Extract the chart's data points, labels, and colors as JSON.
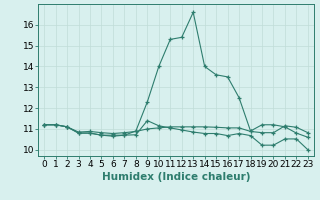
{
  "xlabel": "Humidex (Indice chaleur)",
  "xlim": [
    -0.5,
    23.5
  ],
  "ylim": [
    9.7,
    17.0
  ],
  "yticks": [
    10,
    11,
    12,
    13,
    14,
    15,
    16
  ],
  "xticks": [
    0,
    1,
    2,
    3,
    4,
    5,
    6,
    7,
    8,
    9,
    10,
    11,
    12,
    13,
    14,
    15,
    16,
    17,
    18,
    19,
    20,
    21,
    22,
    23
  ],
  "background_color": "#d8f0ee",
  "line_color": "#2e7d6e",
  "grid_color": "#c0ddd8",
  "series1_x": [
    0,
    1,
    2,
    3,
    4,
    5,
    6,
    7,
    8,
    9,
    10,
    11,
    12,
    13,
    14,
    15,
    16,
    17,
    18,
    19,
    20,
    21,
    22,
    23
  ],
  "series1_y": [
    11.2,
    11.2,
    11.1,
    10.8,
    10.8,
    10.7,
    10.7,
    10.7,
    10.9,
    12.3,
    14.0,
    15.3,
    15.4,
    16.6,
    14.0,
    13.6,
    13.5,
    12.5,
    10.9,
    11.2,
    11.2,
    11.1,
    10.8,
    10.6
  ],
  "series2_x": [
    0,
    1,
    2,
    3,
    4,
    5,
    6,
    7,
    8,
    9,
    10,
    11,
    12,
    13,
    14,
    15,
    16,
    17,
    18,
    19,
    20,
    21,
    22,
    23
  ],
  "series2_y": [
    11.2,
    11.2,
    11.1,
    10.85,
    10.88,
    10.82,
    10.78,
    10.82,
    10.88,
    11.0,
    11.05,
    11.1,
    11.1,
    11.1,
    11.1,
    11.08,
    11.05,
    11.05,
    10.88,
    10.82,
    10.82,
    11.15,
    11.08,
    10.82
  ],
  "series3_x": [
    0,
    1,
    2,
    3,
    4,
    5,
    6,
    7,
    8,
    9,
    10,
    11,
    12,
    13,
    14,
    15,
    16,
    17,
    18,
    19,
    20,
    21,
    22,
    23
  ],
  "series3_y": [
    11.2,
    11.2,
    11.1,
    10.8,
    10.8,
    10.7,
    10.65,
    10.7,
    10.72,
    11.4,
    11.15,
    11.05,
    10.95,
    10.85,
    10.78,
    10.78,
    10.68,
    10.78,
    10.68,
    10.22,
    10.22,
    10.52,
    10.52,
    10.0
  ],
  "tick_fontsize": 6.5,
  "xlabel_fontsize": 7.5
}
